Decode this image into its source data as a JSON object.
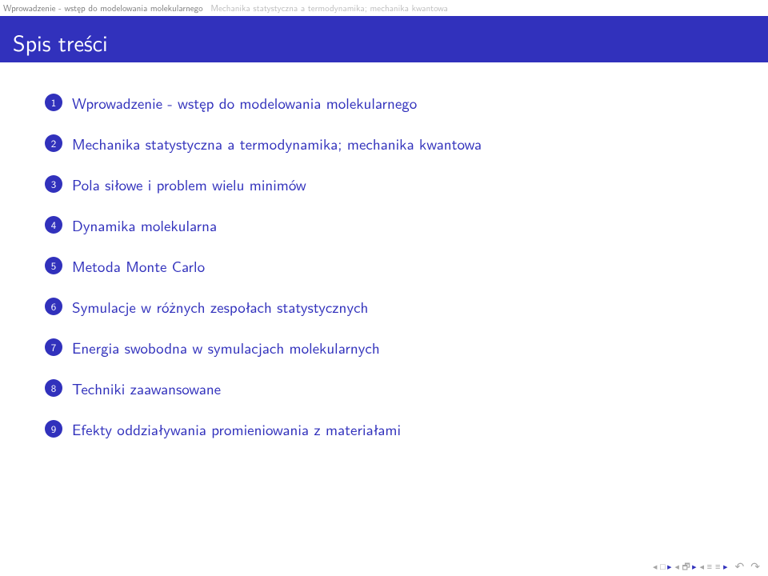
{
  "colors": {
    "title_bg": "#3131bc",
    "item_text": "#3131bc",
    "topnav_left": "#7b7b7b",
    "topnav_right": "#bcbcbc",
    "bullet_bg": "#3131bc",
    "nav_grey": "#a6a6a6",
    "nav_blue": "#3131bc"
  },
  "topnav": {
    "left": "Wprowadzenie - wstęp do modelowania molekularnego",
    "right": "Mechanika statystyczna a termodynamika; mechanika kwantowa"
  },
  "title": "Spis treści",
  "items": [
    {
      "num": "1",
      "label": "Wprowadzenie - wstęp do modelowania molekularnego"
    },
    {
      "num": "2",
      "label": "Mechanika statystyczna a termodynamika; mechanika kwantowa"
    },
    {
      "num": "3",
      "label": "Pola siłowe i problem wielu minimów"
    },
    {
      "num": "4",
      "label": "Dynamika molekularna"
    },
    {
      "num": "5",
      "label": "Metoda Monte Carlo"
    },
    {
      "num": "6",
      "label": "Symulacje w różnych zespołach statystycznych"
    },
    {
      "num": "7",
      "label": "Energia swobodna w symulacjach molekularnych"
    },
    {
      "num": "8",
      "label": "Techniki zaawansowane"
    },
    {
      "num": "9",
      "label": "Efekty oddziaływania promieniowania z materiałami"
    }
  ],
  "nav": {
    "first": "◀ □",
    "prev_section": "◀ 🗗",
    "prev": "◀ ≡",
    "next": "≡ ▶",
    "back": "↶",
    "forward": "↷"
  }
}
